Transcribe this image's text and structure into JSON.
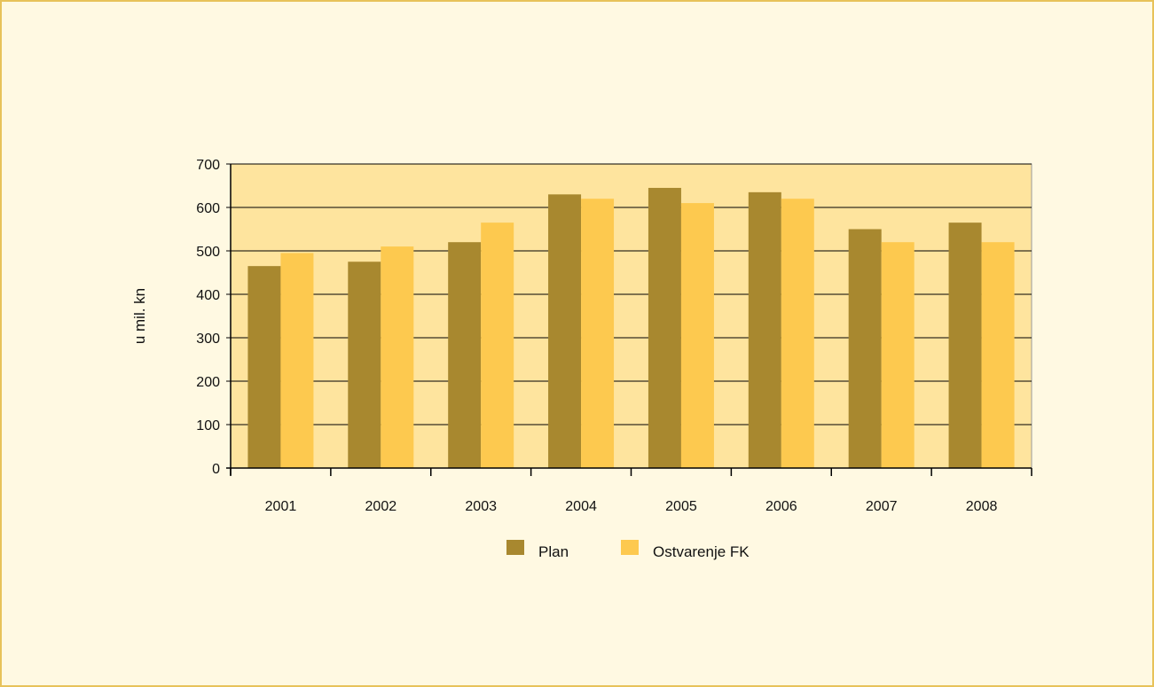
{
  "chart_data": {
    "type": "bar",
    "title": "",
    "xlabel": "",
    "ylabel": "u mil. kn",
    "ylim": [
      0,
      700
    ],
    "yticks": [
      0,
      100,
      200,
      300,
      400,
      500,
      600,
      700
    ],
    "categories": [
      "2001",
      "2002",
      "2003",
      "2004",
      "2005",
      "2006",
      "2007",
      "2008"
    ],
    "series": [
      {
        "name": "Plan",
        "color": "#a8882f",
        "values": [
          465,
          475,
          520,
          630,
          645,
          635,
          550,
          565
        ]
      },
      {
        "name": "Ostvarenje FK",
        "color": "#fdc94f",
        "values": [
          495,
          510,
          565,
          620,
          610,
          620,
          520,
          520
        ]
      }
    ],
    "grid": true,
    "legend": "bottom-center",
    "colors": {
      "plot_background": "#fee49e",
      "frame_background": "#fff9e2",
      "frame_border": "#e8c25a",
      "gridline": "#000000"
    }
  }
}
